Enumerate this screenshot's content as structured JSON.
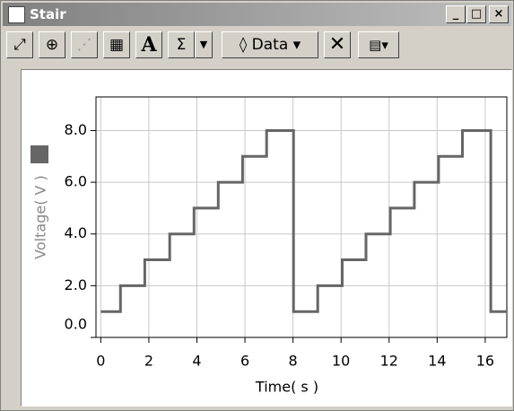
{
  "window": {
    "title": "Stair",
    "toolbar": {
      "bold": "A",
      "sum": "Σ",
      "data": "Data"
    }
  },
  "chart_data": {
    "type": "line",
    "x_label": "Time( s )",
    "y_label": "Voltage( V )",
    "x": [
      0,
      0.82,
      0.82,
      1.83,
      1.83,
      2.87,
      2.87,
      3.88,
      3.88,
      4.89,
      4.89,
      5.9,
      5.9,
      6.9,
      6.9,
      8.02,
      8.02,
      9.03,
      9.03,
      10.05,
      10.05,
      11.04,
      11.04,
      12.05,
      12.05,
      13.05,
      13.05,
      14.06,
      14.06,
      15.05,
      15.05,
      16.23,
      16.23,
      16.9
    ],
    "series": [
      {
        "color": "#666666",
        "values": [
          1,
          1,
          2,
          2,
          3,
          3,
          4,
          4,
          5,
          5,
          6,
          6,
          7,
          7,
          8,
          8,
          1,
          1,
          2,
          2,
          3,
          3,
          4,
          4,
          5,
          5,
          6,
          6,
          7,
          7,
          8,
          8,
          1,
          1
        ]
      }
    ],
    "xlim": [
      -0.2,
      16.9
    ],
    "ylim": [
      0,
      9.3
    ],
    "xticks": [
      0,
      2,
      4,
      6,
      8,
      10,
      12,
      14,
      16
    ],
    "yticks": [
      {
        "value": 0,
        "label": "0.0"
      },
      {
        "value": 2,
        "label": "2.0"
      },
      {
        "value": 4,
        "label": "4.0"
      },
      {
        "value": 6,
        "label": "6.0"
      },
      {
        "value": 8,
        "label": "8.0"
      }
    ],
    "grid": true
  }
}
